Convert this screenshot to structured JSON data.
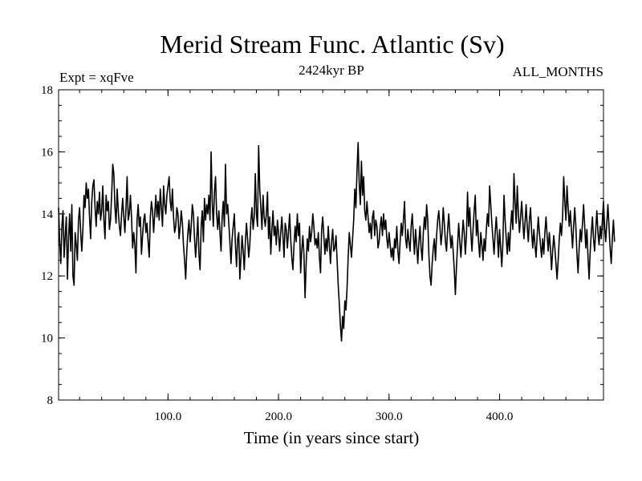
{
  "chart_data": {
    "type": "line",
    "title": "Merid Stream Func. Atlantic (Sv)",
    "subtitle_left": "Expt = xqFve",
    "subtitle_center": "2424kyr BP",
    "subtitle_right": "ALL_MONTHS",
    "xlabel": "Time (in years since start)",
    "ylabel": "",
    "xlim": [
      1,
      494
    ],
    "ylim": [
      8,
      18
    ],
    "x_ticks": [
      100,
      200,
      300,
      400
    ],
    "x_tick_labels": [
      "100.0",
      "200.0",
      "300.0",
      "400.0"
    ],
    "y_ticks": [
      8,
      10,
      12,
      14,
      16,
      18
    ],
    "y_tick_labels": [
      "8",
      "10",
      "12",
      "14",
      "16",
      "18"
    ],
    "grid": false,
    "series": [
      {
        "name": "Merid Stream Func. Atlantic",
        "x_start": 1,
        "x_step": 1,
        "values": [
          14.2,
          13.1,
          12.4,
          13.6,
          14.1,
          12.6,
          13.3,
          13.9,
          11.9,
          13.2,
          14.0,
          12.8,
          14.3,
          12.0,
          11.7,
          13.4,
          13.0,
          12.5,
          13.8,
          14.2,
          13.4,
          12.8,
          13.5,
          14.6,
          14.2,
          15.0,
          14.5,
          14.8,
          13.9,
          13.2,
          14.4,
          14.9,
          15.1,
          14.2,
          13.6,
          14.4,
          14.0,
          14.7,
          13.8,
          14.1,
          14.9,
          13.8,
          13.2,
          14.6,
          14.1,
          14.4,
          13.5,
          13.8,
          14.6,
          15.6,
          15.3,
          14.2,
          13.7,
          14.8,
          14.1,
          13.6,
          13.3,
          14.0,
          14.5,
          13.9,
          13.4,
          14.2,
          15.2,
          13.8,
          14.0,
          14.6,
          13.9,
          12.9,
          13.4,
          13.0,
          12.1,
          13.8,
          14.3,
          13.6,
          13.9,
          12.7,
          13.3,
          13.8,
          14.0,
          13.4,
          13.7,
          13.1,
          12.6,
          13.9,
          14.4,
          14.1,
          13.4,
          14.0,
          14.6,
          13.9,
          14.4,
          13.8,
          14.8,
          14.2,
          13.6,
          14.9,
          14.3,
          14.0,
          14.6,
          14.9,
          15.2,
          14.4,
          14.1,
          14.8,
          13.9,
          13.4,
          13.6,
          14.2,
          14.0,
          13.2,
          13.6,
          14.1,
          13.7,
          13.0,
          12.5,
          11.9,
          12.8,
          13.4,
          13.8,
          13.1,
          13.6,
          14.3,
          14.0,
          13.2,
          12.6,
          13.2,
          13.9,
          12.7,
          12.2,
          13.6,
          14.1,
          13.1,
          14.5,
          13.8,
          14.3,
          14.0,
          14.6,
          13.8,
          16.0,
          14.4,
          13.6,
          14.7,
          15.2,
          14.0,
          13.5,
          14.1,
          13.4,
          12.8,
          13.9,
          14.4,
          13.6,
          15.6,
          14.0,
          14.3,
          13.7,
          13.1,
          12.4,
          13.2,
          13.6,
          14.0,
          13.0,
          12.3,
          13.2,
          13.4,
          11.9,
          12.6,
          13.3,
          12.8,
          12.2,
          13.1,
          13.7,
          13.2,
          12.6,
          13.0,
          13.8,
          14.2,
          13.5,
          13.9,
          15.3,
          14.0,
          13.6,
          16.2,
          14.8,
          14.2,
          13.5,
          14.6,
          13.9,
          13.6,
          14.0,
          14.7,
          13.2,
          13.9,
          12.7,
          13.5,
          14.1,
          13.3,
          13.6,
          13.0,
          13.8,
          13.4,
          12.8,
          13.4,
          13.9,
          13.3,
          12.6,
          13.7,
          13.5,
          12.9,
          13.4,
          14.0,
          13.2,
          12.6,
          12.2,
          13.0,
          13.6,
          13.1,
          14.0,
          13.3,
          13.7,
          12.1,
          12.8,
          13.3,
          12.7,
          11.3,
          12.4,
          13.2,
          12.8,
          13.6,
          13.1,
          13.4,
          14.0,
          13.6,
          13.0,
          13.2,
          12.9,
          13.4,
          12.6,
          12.1,
          13.5,
          13.9,
          13.3,
          12.7,
          13.2,
          12.8,
          13.6,
          13.0,
          12.4,
          13.1,
          13.5,
          12.8,
          12.9,
          13.3,
          12.5,
          11.7,
          11.1,
          10.4,
          9.9,
          10.7,
          10.3,
          11.2,
          10.9,
          11.6,
          12.6,
          13.4,
          13.0,
          12.6,
          13.2,
          13.8,
          14.8,
          14.2,
          15.4,
          16.3,
          15.0,
          14.3,
          15.7,
          14.6,
          15.2,
          14.1,
          13.8,
          14.4,
          13.9,
          13.4,
          13.7,
          13.2,
          13.9,
          14.1,
          13.3,
          13.8,
          13.6,
          12.9,
          13.1,
          13.6,
          13.9,
          13.3,
          14.0,
          13.5,
          13.8,
          13.2,
          12.9,
          13.4,
          13.0,
          12.6,
          12.9,
          12.5,
          13.2,
          12.9,
          13.6,
          12.8,
          12.4,
          13.1,
          13.7,
          13.3,
          13.8,
          14.4,
          13.2,
          12.9,
          13.5,
          13.1,
          12.8,
          13.6,
          14.0,
          13.3,
          12.7,
          13.5,
          13.0,
          12.4,
          13.1,
          13.6,
          12.9,
          12.5,
          13.4,
          13.9,
          13.5,
          14.3,
          13.8,
          12.7,
          12.0,
          11.7,
          12.4,
          12.9,
          13.2,
          12.5,
          13.3,
          13.8,
          14.1,
          13.6,
          13.0,
          13.4,
          14.2,
          13.7,
          13.1,
          12.8,
          13.5,
          14.0,
          13.4,
          12.9,
          13.3,
          12.8,
          12.2,
          11.4,
          12.3,
          13.0,
          13.7,
          13.1,
          12.6,
          13.2,
          13.8,
          13.4,
          12.7,
          13.3,
          14.7,
          13.6,
          14.2,
          13.4,
          12.8,
          13.5,
          14.1,
          14.6,
          13.3,
          13.8,
          13.1,
          12.6,
          13.4,
          13.0,
          12.5,
          13.2,
          12.8,
          13.5,
          14.0,
          13.6,
          14.9,
          14.3,
          13.7,
          13.2,
          12.7,
          13.4,
          13.9,
          13.3,
          12.6,
          13.5,
          12.9,
          12.3,
          13.1,
          14.6,
          13.8,
          13.2,
          12.7,
          13.4,
          12.8,
          13.6,
          14.1,
          13.5,
          15.3,
          14.4,
          13.7,
          14.9,
          14.0,
          13.4,
          13.9,
          14.4,
          13.8,
          13.2,
          13.7,
          14.3,
          13.6,
          13.1,
          13.8,
          14.2,
          13.4,
          12.9,
          13.5,
          13.0,
          12.6,
          13.3,
          13.9,
          13.4,
          13.0,
          12.6,
          13.2,
          12.7,
          13.4,
          13.9,
          13.3,
          12.8,
          13.4,
          12.9,
          12.2,
          12.8,
          13.3,
          12.9,
          12.4,
          11.9,
          12.5,
          13.2,
          13.7,
          13.3,
          13.9,
          15.2,
          14.4,
          13.8,
          14.9,
          14.2,
          13.6,
          14.1,
          13.5,
          12.9,
          13.6,
          14.2,
          13.6,
          12.7,
          12.1,
          12.9,
          13.5,
          13.1,
          13.7,
          14.3,
          13.6,
          12.9,
          13.5,
          12.6,
          11.9,
          12.8,
          13.4,
          13.9,
          13.2,
          12.8,
          13.5,
          14.1,
          13.4,
          13.0,
          13.6,
          13.2,
          13.8,
          14.4,
          13.6,
          13.1,
          13.7,
          14.3,
          13.6,
          12.9,
          12.4,
          13.2,
          13.8,
          13.1
        ]
      }
    ]
  }
}
